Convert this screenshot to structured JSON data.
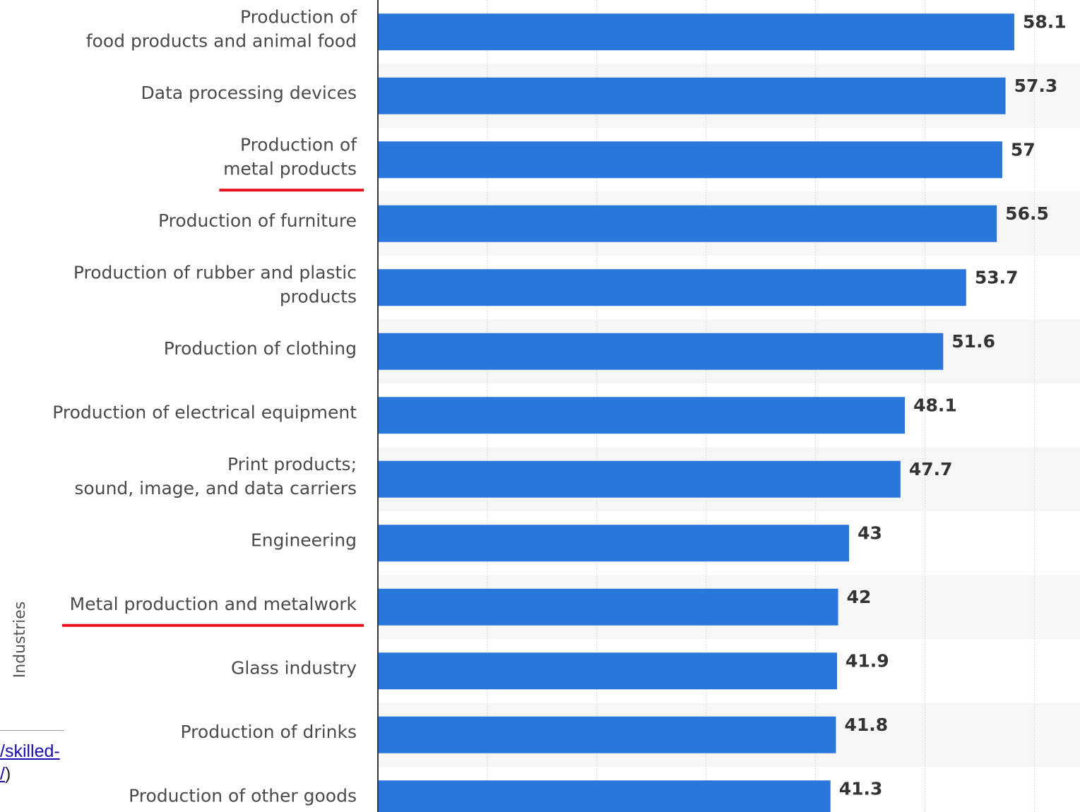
{
  "chart_data": {
    "type": "bar",
    "orientation": "horizontal",
    "ylabel": "Industries",
    "categories": [
      [
        "Production of",
        "food products and animal food"
      ],
      [
        "Data processing devices"
      ],
      [
        "Production of",
        "metal products"
      ],
      [
        "Production of furniture"
      ],
      [
        "Production of rubber and plastic",
        "products"
      ],
      [
        "Production of clothing"
      ],
      [
        "Production of electrical equipment"
      ],
      [
        "Print products;",
        "sound, image, and data carriers"
      ],
      [
        "Engineering"
      ],
      [
        "Metal production and metalwork"
      ],
      [
        "Glass industry"
      ],
      [
        "Production of drinks"
      ],
      [
        "Production of other goods"
      ]
    ],
    "values": [
      58.1,
      57.3,
      57,
      56.5,
      53.7,
      51.6,
      48.1,
      47.7,
      43,
      42,
      41.9,
      41.8,
      41.3
    ],
    "value_labels": [
      "58.1",
      "57.3",
      "57",
      "56.5",
      "53.7",
      "51.6",
      "48.1",
      "47.7",
      "43",
      "42",
      "41.9",
      "41.8",
      "41.3"
    ],
    "underlined_categories": [
      2,
      9
    ],
    "bar_color": "#2a77dc",
    "underline_color": "#e8101a",
    "band_color": "#f6f6f6",
    "grid": true
  },
  "footnote": {
    "line1": "/skilled-",
    "line2": "/",
    "close_paren": ")"
  }
}
